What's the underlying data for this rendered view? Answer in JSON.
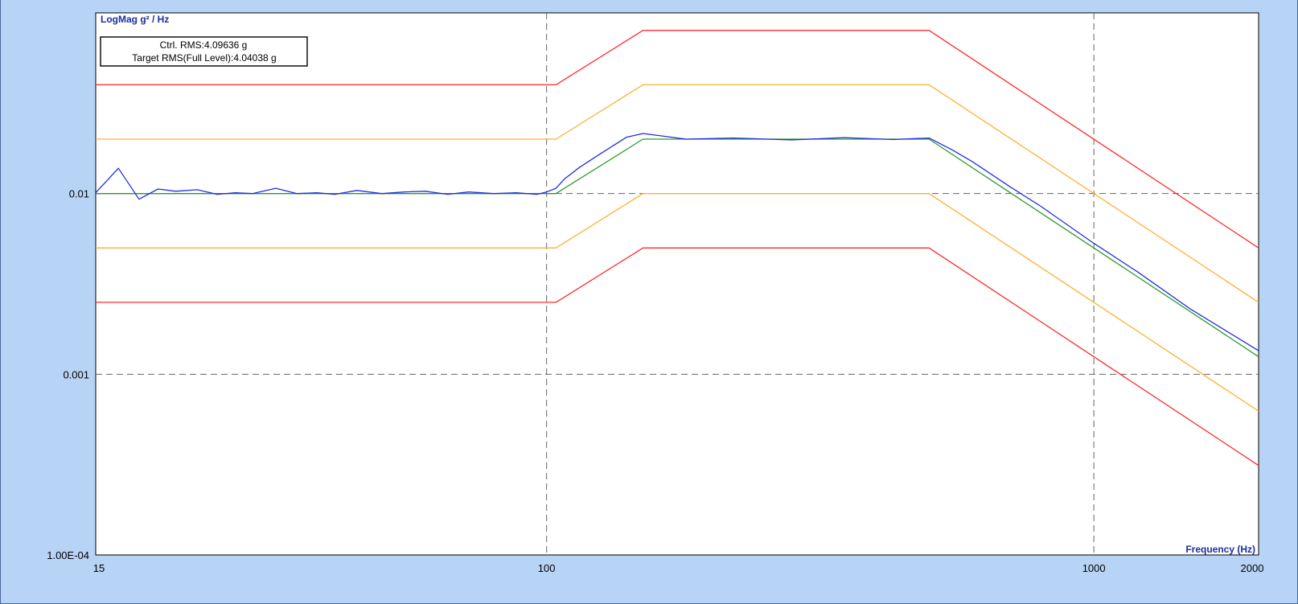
{
  "chart_data": {
    "type": "line",
    "title": "",
    "ylabel": "LogMag g² / Hz",
    "xlabel": "Frequency (Hz)",
    "x_scale": "log",
    "y_scale": "log",
    "xlim": [
      15,
      2000
    ],
    "ylim": [
      0.0001,
      0.1
    ],
    "x_tick_values": [
      15,
      100,
      1000,
      2000
    ],
    "x_tick_labels": [
      "15",
      "100",
      "1000",
      "2000"
    ],
    "y_tick_values": [
      0.01,
      0.001,
      0.0001
    ],
    "y_tick_labels": [
      "0.01",
      "0.001",
      "1.00E-04"
    ],
    "grid": true,
    "legend": null,
    "annotations": {
      "ctrl_rms": "Ctrl. RMS:4.09636 g",
      "target_rms": "Target RMS(Full Level):4.04038 g"
    },
    "series": [
      {
        "color": "#ff2a2a",
        "x": [
          15,
          104,
          150,
          500,
          2000
        ],
        "y": [
          0.04,
          0.04,
          0.08,
          0.08,
          0.005
        ]
      },
      {
        "color": "#ffb030",
        "x": [
          15,
          104,
          150,
          500,
          2000
        ],
        "y": [
          0.02,
          0.02,
          0.04,
          0.04,
          0.0025
        ]
      },
      {
        "color": "#2e9a2e",
        "x": [
          15,
          104,
          150,
          500,
          2000
        ],
        "y": [
          0.01,
          0.01,
          0.02,
          0.02,
          0.00125
        ]
      },
      {
        "color": "#ffb030",
        "x": [
          15,
          104,
          150,
          500,
          2000
        ],
        "y": [
          0.005,
          0.005,
          0.01,
          0.01,
          0.000625
        ]
      },
      {
        "color": "#ff2a2a",
        "x": [
          15,
          104,
          150,
          500,
          2000
        ],
        "y": [
          0.0025,
          0.0025,
          0.005,
          0.005,
          0.0003125
        ]
      },
      {
        "color": "#1f2fe0",
        "x": [
          15,
          16.5,
          18,
          19.5,
          21,
          23,
          25,
          27,
          29,
          32,
          35,
          38,
          41,
          45,
          50,
          55,
          60,
          66,
          72,
          80,
          88,
          96,
          100,
          104,
          108,
          115,
          125,
          140,
          150,
          180,
          220,
          280,
          350,
          430,
          500,
          550,
          600,
          700,
          800,
          1000,
          1200,
          1500,
          2000
        ],
        "y": [
          0.0101,
          0.0138,
          0.0093,
          0.0106,
          0.0103,
          0.0105,
          0.0099,
          0.0101,
          0.01,
          0.0107,
          0.01,
          0.0101,
          0.0099,
          0.0104,
          0.01,
          0.0102,
          0.0103,
          0.0099,
          0.0102,
          0.01,
          0.0101,
          0.0099,
          0.0102,
          0.0107,
          0.0121,
          0.014,
          0.0165,
          0.0205,
          0.0215,
          0.02,
          0.0203,
          0.0198,
          0.0204,
          0.0199,
          0.0203,
          0.0175,
          0.015,
          0.011,
          0.0085,
          0.0053,
          0.0037,
          0.0023,
          0.00135
        ]
      }
    ]
  }
}
